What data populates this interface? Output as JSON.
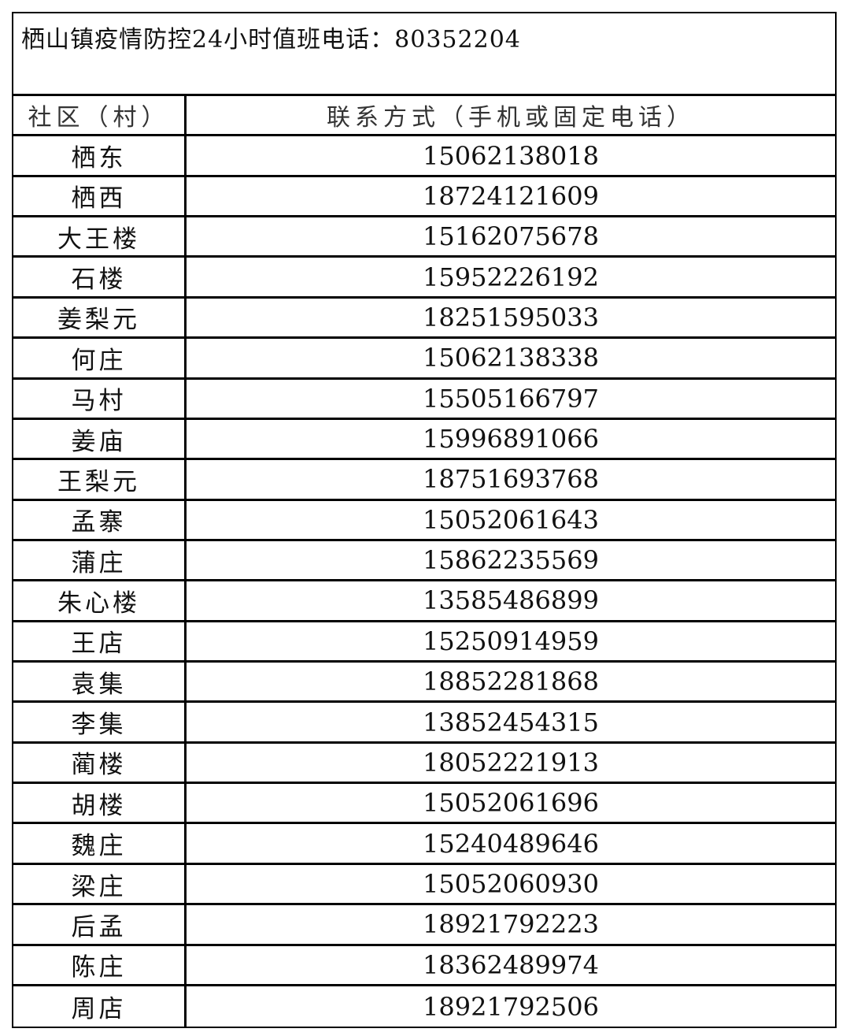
{
  "title": "栖山镇疫情防控24小时值班电话：80352204",
  "headers": {
    "community": "社区（村）",
    "contact": "联系方式（手机或固定电话）"
  },
  "rows": [
    {
      "name": "栖东",
      "phone": "15062138018"
    },
    {
      "name": "栖西",
      "phone": "18724121609"
    },
    {
      "name": "大王楼",
      "phone": "15162075678"
    },
    {
      "name": "石楼",
      "phone": "15952226192"
    },
    {
      "name": "姜梨元",
      "phone": "18251595033"
    },
    {
      "name": "何庄",
      "phone": "15062138338"
    },
    {
      "name": "马村",
      "phone": "15505166797"
    },
    {
      "name": "姜庙",
      "phone": "15996891066"
    },
    {
      "name": "王梨元",
      "phone": "18751693768"
    },
    {
      "name": "孟寨",
      "phone": "15052061643"
    },
    {
      "name": "蒲庄",
      "phone": "15862235569"
    },
    {
      "name": "朱心楼",
      "phone": "13585486899"
    },
    {
      "name": "王店",
      "phone": "15250914959"
    },
    {
      "name": "袁集",
      "phone": "18852281868"
    },
    {
      "name": "李集",
      "phone": "13852454315"
    },
    {
      "name": "蔺楼",
      "phone": "18052221913"
    },
    {
      "name": "胡楼",
      "phone": "15052061696"
    },
    {
      "name": "魏庄",
      "phone": "15240489646"
    },
    {
      "name": "梁庄",
      "phone": "15052060930"
    },
    {
      "name": "后孟",
      "phone": "18921792223"
    },
    {
      "name": "陈庄",
      "phone": "18362489974"
    },
    {
      "name": "周店",
      "phone": "18921792506"
    }
  ]
}
